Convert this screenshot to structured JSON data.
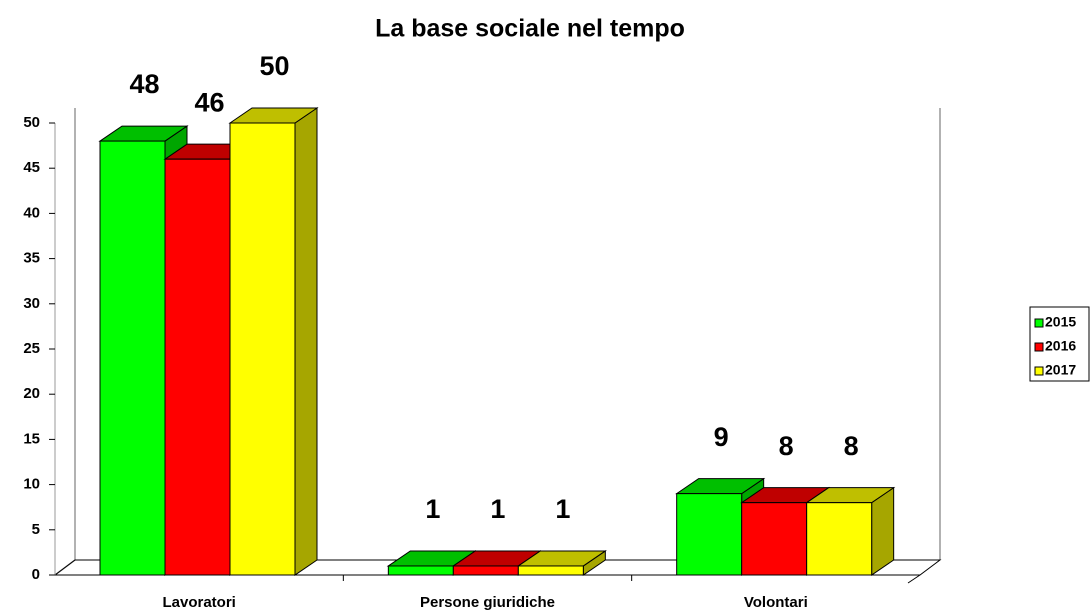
{
  "chart_data": {
    "type": "bar3d",
    "title": "La base sociale nel tempo",
    "categories": [
      "Lavoratori",
      "Persone giuridiche",
      "Volontari"
    ],
    "series": [
      {
        "name": "2015",
        "color": "#00ff00",
        "values": [
          48,
          1,
          9
        ]
      },
      {
        "name": "2016",
        "color": "#ff0000",
        "values": [
          46,
          1,
          8
        ]
      },
      {
        "name": "2017",
        "color": "#ffff00",
        "values": [
          50,
          1,
          8
        ]
      }
    ],
    "ylim": [
      0,
      50
    ],
    "yticks": [
      0,
      5,
      10,
      15,
      20,
      25,
      30,
      35,
      40,
      45,
      50
    ],
    "legend": "right"
  }
}
